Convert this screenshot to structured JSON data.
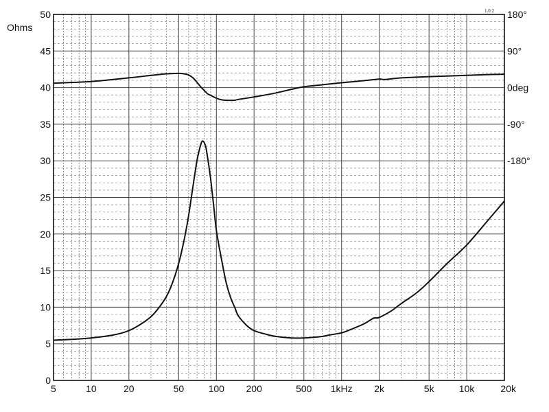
{
  "chart_data": {
    "type": "line",
    "title": "",
    "x_scale": "log",
    "xlim": [
      5,
      20000
    ],
    "x_ticks": [
      {
        "value": 5,
        "label": "5"
      },
      {
        "value": 10,
        "label": "10"
      },
      {
        "value": 20,
        "label": "20"
      },
      {
        "value": 50,
        "label": "50"
      },
      {
        "value": 100,
        "label": "100"
      },
      {
        "value": 200,
        "label": "200"
      },
      {
        "value": 500,
        "label": "500"
      },
      {
        "value": 1000,
        "label": "1kHz"
      },
      {
        "value": 2000,
        "label": "2k"
      },
      {
        "value": 5000,
        "label": "5k"
      },
      {
        "value": 10000,
        "label": "10k"
      },
      {
        "value": 20000,
        "label": "20k"
      }
    ],
    "y_left": {
      "unit_label": "Ohms",
      "ylim": [
        0,
        50
      ],
      "ticks": [
        0,
        5,
        10,
        15,
        20,
        25,
        30,
        35,
        40,
        45,
        50
      ]
    },
    "y_right": {
      "ticks": [
        {
          "value": 180,
          "label": "180°"
        },
        {
          "value": 90,
          "label": "90°"
        },
        {
          "value": 0,
          "label": "0deg"
        },
        {
          "value": -90,
          "label": "-90°"
        },
        {
          "value": -180,
          "label": "-180°"
        }
      ]
    },
    "corner_label": "1.0.2",
    "grid": true,
    "series": [
      {
        "axis": "left",
        "color": "#111111",
        "points": [
          [
            5,
            5.5
          ],
          [
            7,
            5.6
          ],
          [
            10,
            5.8
          ],
          [
            15,
            6.2
          ],
          [
            20,
            6.8
          ],
          [
            25,
            7.7
          ],
          [
            30,
            8.7
          ],
          [
            35,
            10.0
          ],
          [
            40,
            11.5
          ],
          [
            45,
            13.5
          ],
          [
            50,
            16.0
          ],
          [
            55,
            19.0
          ],
          [
            60,
            22.5
          ],
          [
            65,
            26.5
          ],
          [
            70,
            30.0
          ],
          [
            75,
            32.2
          ],
          [
            78,
            32.7
          ],
          [
            82,
            32.0
          ],
          [
            85,
            30.5
          ],
          [
            90,
            27.5
          ],
          [
            95,
            24.0
          ],
          [
            100,
            20.5
          ],
          [
            110,
            16.5
          ],
          [
            120,
            13.3
          ],
          [
            130,
            11.3
          ],
          [
            140,
            10.0
          ],
          [
            150,
            8.8
          ],
          [
            175,
            7.5
          ],
          [
            200,
            6.8
          ],
          [
            250,
            6.3
          ],
          [
            300,
            6.0
          ],
          [
            400,
            5.8
          ],
          [
            500,
            5.8
          ],
          [
            600,
            5.9
          ],
          [
            700,
            6.0
          ],
          [
            800,
            6.2
          ],
          [
            1000,
            6.5
          ],
          [
            1200,
            7.0
          ],
          [
            1500,
            7.7
          ],
          [
            1800,
            8.5
          ],
          [
            2000,
            8.6
          ],
          [
            2500,
            9.5
          ],
          [
            3000,
            10.5
          ],
          [
            4000,
            12.0
          ],
          [
            5000,
            13.5
          ],
          [
            7000,
            16.0
          ],
          [
            10000,
            18.5
          ],
          [
            15000,
            22.0
          ],
          [
            20000,
            24.5
          ]
        ]
      },
      {
        "axis": "right",
        "color": "#111111",
        "points": [
          [
            5,
            11
          ],
          [
            10,
            15
          ],
          [
            20,
            24
          ],
          [
            30,
            30
          ],
          [
            40,
            34
          ],
          [
            50,
            35
          ],
          [
            55,
            34
          ],
          [
            60,
            31
          ],
          [
            65,
            24
          ],
          [
            70,
            13
          ],
          [
            75,
            2
          ],
          [
            80,
            -7
          ],
          [
            85,
            -15
          ],
          [
            90,
            -19
          ],
          [
            100,
            -26
          ],
          [
            110,
            -30
          ],
          [
            120,
            -31
          ],
          [
            140,
            -31
          ],
          [
            150,
            -29
          ],
          [
            200,
            -23
          ],
          [
            300,
            -13
          ],
          [
            400,
            -4
          ],
          [
            500,
            2
          ],
          [
            700,
            7
          ],
          [
            1000,
            12
          ],
          [
            1500,
            17
          ],
          [
            2000,
            21
          ],
          [
            2200,
            20
          ],
          [
            3000,
            24
          ],
          [
            5000,
            27
          ],
          [
            10000,
            30
          ],
          [
            15000,
            32
          ],
          [
            20000,
            33
          ]
        ]
      }
    ]
  }
}
